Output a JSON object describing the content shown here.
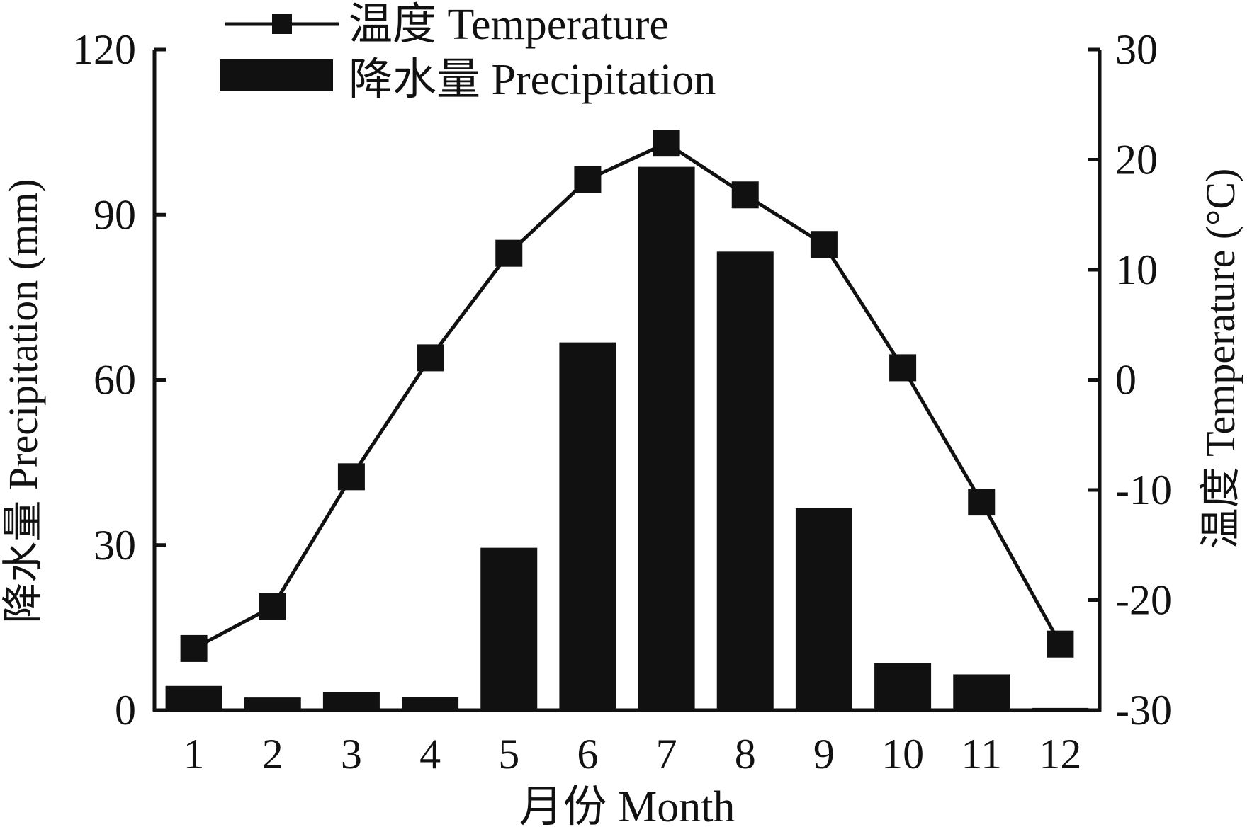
{
  "chart_data": {
    "type": "bar+line",
    "categories": [
      "1",
      "2",
      "3",
      "4",
      "5",
      "6",
      "7",
      "8",
      "9",
      "10",
      "11",
      "12"
    ],
    "xlabel": "月份 Month",
    "ylabel_left": "降水量 Precipitation (mm)",
    "ylabel_right": "温度 Temperature (°C)",
    "ylim_left": [
      0,
      120
    ],
    "ylim_right": [
      -30,
      30
    ],
    "yticks_left": [
      "0",
      "30",
      "60",
      "90",
      "120"
    ],
    "yticks_right": [
      "-30",
      "-20",
      "-10",
      "0",
      "10",
      "20",
      "30"
    ],
    "grid": false,
    "legend_position": "top-left",
    "series": [
      {
        "name": "降水量 Precipitation",
        "type": "bar",
        "axis": "left",
        "color": "#111111",
        "values": [
          4.4,
          2.3,
          3.3,
          2.4,
          29.5,
          66.8,
          98.7,
          83.3,
          36.7,
          8.6,
          6.5,
          0.4
        ]
      },
      {
        "name": "温度 Temperature",
        "type": "line",
        "axis": "right",
        "color": "#111111",
        "values": [
          -24.4,
          -20.6,
          -8.8,
          2.0,
          11.5,
          18.2,
          21.5,
          16.8,
          12.3,
          1.1,
          -11.1,
          -24.0
        ]
      }
    ]
  }
}
